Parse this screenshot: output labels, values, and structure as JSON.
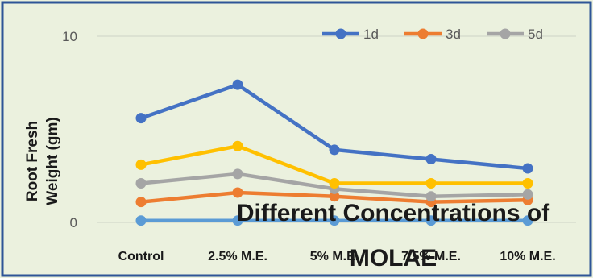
{
  "chart_data": {
    "type": "line",
    "title": "",
    "xlabel": "Different Concentrations of MOLAE",
    "xlabel_lines": [
      "Different Concentrations of",
      "MOLAE"
    ],
    "ylabel": "Root Fresh Weight (gm)",
    "ylabel_lines": [
      "Root Fresh",
      "Weight (gm)"
    ],
    "ylim": [
      0,
      10
    ],
    "yticks": [
      "0",
      "10"
    ],
    "ytick_values": [
      0,
      10
    ],
    "categories": [
      "Control",
      "2.5% M.E.",
      "5% M.E.",
      "7.5% M.E.",
      "10% M.E."
    ],
    "grid": true,
    "legend_position": "top-right",
    "series": [
      {
        "name": "1d",
        "color": "#4472C4",
        "values": [
          5.6,
          7.4,
          3.9,
          3.4,
          2.9
        ],
        "in_legend": true
      },
      {
        "name": "3d",
        "color": "#ED7D31",
        "values": [
          1.1,
          1.6,
          1.4,
          1.1,
          1.2
        ],
        "in_legend": true
      },
      {
        "name": "5d",
        "color": "#A5A5A5",
        "values": [
          2.1,
          2.6,
          1.8,
          1.4,
          1.5
        ],
        "in_legend": true
      },
      {
        "name": "",
        "color": "#FFC000",
        "values": [
          3.1,
          4.1,
          2.1,
          2.1,
          2.1
        ],
        "in_legend": false
      },
      {
        "name": "",
        "color": "#5B9BD5",
        "values": [
          0.1,
          0.1,
          0.1,
          0.1,
          0.1
        ],
        "in_legend": false
      }
    ],
    "colors": {
      "plot_background": "#EBF1DE",
      "frame": "#2E5597",
      "gridline": "#D4D9CC"
    }
  }
}
